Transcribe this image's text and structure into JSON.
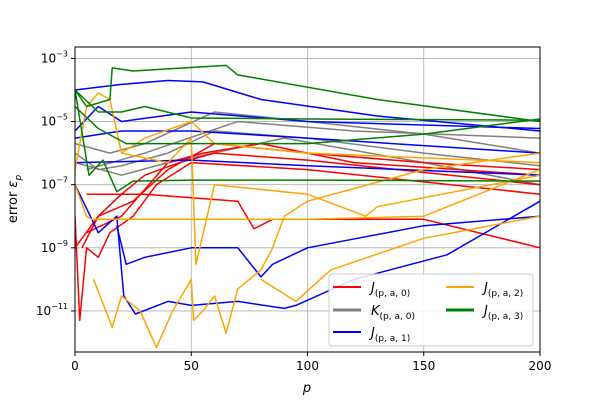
{
  "chart_data": {
    "type": "line",
    "title": "",
    "xlabel": "p",
    "ylabel": "error ε_p",
    "ylabel_prefix": "error ",
    "ylabel_symbol": "ε",
    "ylabel_sub": "p",
    "xlim": [
      0,
      200
    ],
    "ylim": [
      5e-13,
      0.0023
    ],
    "yscale": "log",
    "grid": true,
    "legend_placement": "lower-right",
    "x_ticks": [
      0,
      50,
      100,
      150,
      200
    ],
    "x_tick_labels": [
      "0",
      "50",
      "100",
      "150",
      "200"
    ],
    "y_ticks": [
      0.001,
      1e-05,
      1e-07,
      1e-09,
      1e-11
    ],
    "y_tick_labels": [
      {
        "base": "10",
        "exp": "−3"
      },
      {
        "base": "10",
        "exp": "−5"
      },
      {
        "base": "10",
        "exp": "−7"
      },
      {
        "base": "10",
        "exp": "−9"
      },
      {
        "base": "10",
        "exp": "−11"
      }
    ],
    "legend": [
      {
        "symbol": "J",
        "sub": "(p, a, 0)",
        "color": "#ff0000"
      },
      {
        "symbol": "K",
        "sub": "(p, a, 0)",
        "color": "#808080"
      },
      {
        "symbol": "J",
        "sub": "(p, a, 1)",
        "color": "#0000ff"
      },
      {
        "symbol": "J",
        "sub": "(p, a, 2)",
        "color": "#ffa500"
      },
      {
        "symbol": "J",
        "sub": "(p, a, 3)",
        "color": "#008000"
      }
    ],
    "series": [
      {
        "group": 1,
        "points": [
          [
            0,
            1e-06
          ],
          [
            10,
            3e-07
          ],
          [
            20,
            4e-07
          ],
          [
            40,
            1e-06
          ],
          [
            60,
            5e-06
          ],
          [
            100,
            3e-06
          ],
          [
            150,
            1e-06
          ],
          [
            200,
            4e-07
          ]
        ]
      },
      {
        "group": 1,
        "points": [
          [
            0,
            2e-06
          ],
          [
            15,
            1e-06
          ],
          [
            30,
            2e-06
          ],
          [
            60,
            2e-05
          ],
          [
            100,
            1e-05
          ],
          [
            150,
            4e-06
          ],
          [
            200,
            1e-06
          ]
        ]
      },
      {
        "group": 1,
        "points": [
          [
            0,
            5e-07
          ],
          [
            20,
            2e-07
          ],
          [
            40,
            5e-07
          ],
          [
            90,
            3e-06
          ],
          [
            150,
            5e-07
          ],
          [
            200,
            1e-07
          ]
        ]
      },
      {
        "group": 1,
        "points": [
          [
            5,
            3e-07
          ],
          [
            30,
            1e-06
          ],
          [
            70,
            1e-05
          ],
          [
            120,
            5e-06
          ],
          [
            200,
            3e-06
          ]
        ]
      },
      {
        "group": 0,
        "points": [
          [
            0,
            1e-08
          ],
          [
            2,
            5e-12
          ],
          [
            5,
            1e-09
          ],
          [
            10,
            5e-10
          ],
          [
            15,
            3e-09
          ],
          [
            25,
            1e-08
          ],
          [
            35,
            1e-07
          ],
          [
            50,
            5e-07
          ],
          [
            100,
            3e-07
          ],
          [
            200,
            5e-08
          ]
        ]
      },
      {
        "group": 0,
        "points": [
          [
            0,
            1e-09
          ],
          [
            10,
            1e-08
          ],
          [
            20,
            5e-08
          ],
          [
            30,
            2e-07
          ],
          [
            45,
            5e-07
          ],
          [
            60,
            1e-06
          ],
          [
            100,
            6e-07
          ],
          [
            200,
            1e-07
          ]
        ]
      },
      {
        "group": 0,
        "points": [
          [
            5,
            5e-08
          ],
          [
            30,
            5e-08
          ],
          [
            70,
            3e-08
          ],
          [
            77,
            4e-09
          ],
          [
            85,
            8e-09
          ],
          [
            150,
            8e-09
          ],
          [
            200,
            1e-09
          ]
        ]
      },
      {
        "group": 0,
        "points": [
          [
            3,
            1e-09
          ],
          [
            10,
            1e-08
          ],
          [
            25,
            3e-08
          ],
          [
            40,
            3e-07
          ],
          [
            60,
            2e-06
          ],
          [
            100,
            1e-06
          ],
          [
            150,
            5e-07
          ],
          [
            200,
            3e-07
          ]
        ]
      },
      {
        "group": 0,
        "points": [
          [
            5,
            3e-09
          ],
          [
            20,
            1e-08
          ],
          [
            40,
            5e-07
          ],
          [
            55,
            1e-06
          ],
          [
            80,
            2e-06
          ],
          [
            120,
            5e-07
          ],
          [
            200,
            2e-07
          ]
        ]
      },
      {
        "group": 2,
        "points": [
          [
            0,
            0.0001
          ],
          [
            20,
            0.00015
          ],
          [
            40,
            0.0002
          ],
          [
            55,
            0.00018
          ],
          [
            80,
            5e-05
          ],
          [
            130,
            1.5e-05
          ],
          [
            200,
            5e-06
          ]
        ]
      },
      {
        "group": 2,
        "points": [
          [
            0,
            5e-06
          ],
          [
            10,
            3e-05
          ],
          [
            20,
            1e-05
          ],
          [
            50,
            2e-05
          ],
          [
            100,
            1e-05
          ],
          [
            200,
            6e-06
          ]
        ]
      },
      {
        "group": 2,
        "points": [
          [
            0,
            3e-06
          ],
          [
            20,
            5e-06
          ],
          [
            50,
            5e-06
          ],
          [
            100,
            3e-06
          ],
          [
            200,
            1e-06
          ]
        ]
      },
      {
        "group": 2,
        "points": [
          [
            0,
            5e-07
          ],
          [
            50,
            6e-07
          ],
          [
            100,
            4e-07
          ],
          [
            200,
            2e-07
          ]
        ]
      },
      {
        "group": 2,
        "points": [
          [
            0,
            1e-07
          ],
          [
            10,
            3e-09
          ],
          [
            18,
            1e-08
          ],
          [
            21,
            3e-11
          ],
          [
            26,
            8e-12
          ],
          [
            40,
            2e-11
          ],
          [
            50,
            1.5e-11
          ],
          [
            70,
            2e-11
          ],
          [
            90,
            1.2e-11
          ],
          [
            95,
            1.5e-11
          ],
          [
            120,
            1e-10
          ],
          [
            160,
            6e-10
          ],
          [
            200,
            3e-08
          ]
        ]
      },
      {
        "group": 2,
        "points": [
          [
            18,
            5e-09
          ],
          [
            22,
            3e-10
          ],
          [
            30,
            5e-10
          ],
          [
            50,
            1e-09
          ],
          [
            70,
            1e-09
          ],
          [
            80,
            1.2e-10
          ],
          [
            85,
            3e-10
          ],
          [
            100,
            1e-09
          ],
          [
            150,
            5e-09
          ],
          [
            200,
            1e-08
          ]
        ]
      },
      {
        "group": 3,
        "points": [
          [
            0,
            3e-07
          ],
          [
            5,
            3e-05
          ],
          [
            10,
            8e-05
          ],
          [
            15,
            5e-05
          ],
          [
            20,
            1e-06
          ],
          [
            30,
            3e-06
          ],
          [
            50,
            1e-05
          ],
          [
            60,
            2e-06
          ],
          [
            100,
            1e-06
          ],
          [
            200,
            5e-07
          ]
        ]
      },
      {
        "group": 3,
        "points": [
          [
            0,
            1e-07
          ],
          [
            5,
            1e-08
          ],
          [
            7,
            8e-09
          ],
          [
            50,
            8e-09
          ],
          [
            100,
            8e-09
          ],
          [
            150,
            1e-08
          ],
          [
            200,
            3e-07
          ]
        ]
      },
      {
        "group": 3,
        "points": [
          [
            8,
            1e-10
          ],
          [
            16,
            3e-12
          ],
          [
            20,
            3e-11
          ],
          [
            28,
            1e-11
          ],
          [
            35,
            7e-13
          ],
          [
            42,
            1e-11
          ],
          [
            50,
            1e-10
          ],
          [
            51,
            5e-12
          ],
          [
            55,
            1e-11
          ],
          [
            60,
            3e-11
          ],
          [
            65,
            2e-12
          ],
          [
            70,
            5e-11
          ],
          [
            80,
            2e-10
          ],
          [
            85,
            1e-09
          ],
          [
            90,
            1e-08
          ],
          [
            100,
            3e-08
          ],
          [
            150,
            3e-07
          ],
          [
            200,
            1e-06
          ]
        ]
      },
      {
        "group": 3,
        "points": [
          [
            20,
            1e-06
          ],
          [
            40,
            5e-07
          ],
          [
            50,
            3e-06
          ],
          [
            52,
            3e-10
          ],
          [
            60,
            1e-07
          ],
          [
            100,
            5e-08
          ],
          [
            125,
            1e-08
          ],
          [
            130,
            2e-08
          ],
          [
            200,
            2e-07
          ]
        ]
      },
      {
        "group": 3,
        "points": [
          [
            80,
            1e-10
          ],
          [
            95,
            2e-11
          ],
          [
            110,
            2e-10
          ],
          [
            150,
            2e-09
          ],
          [
            200,
            1e-08
          ]
        ]
      },
      {
        "group": 4,
        "points": [
          [
            0,
            0.0001
          ],
          [
            5,
            3e-05
          ],
          [
            15,
            5e-05
          ],
          [
            16,
            0.0005
          ],
          [
            25,
            0.0004
          ],
          [
            65,
            0.0006
          ],
          [
            70,
            0.0003
          ],
          [
            130,
            5e-05
          ],
          [
            200,
            1e-05
          ]
        ]
      },
      {
        "group": 4,
        "points": [
          [
            0,
            0.0001
          ],
          [
            10,
            2e-05
          ],
          [
            20,
            2e-05
          ],
          [
            30,
            3e-05
          ],
          [
            50,
            1.3e-05
          ],
          [
            100,
            1.2e-05
          ],
          [
            200,
            1.1e-05
          ]
        ]
      },
      {
        "group": 4,
        "points": [
          [
            0,
            3e-05
          ],
          [
            10,
            6e-06
          ],
          [
            22,
            2e-06
          ],
          [
            50,
            2e-06
          ],
          [
            100,
            2e-06
          ],
          [
            150,
            4e-06
          ],
          [
            200,
            1.2e-05
          ]
        ]
      },
      {
        "group": 4,
        "points": [
          [
            0,
            0.0001
          ],
          [
            6,
            2e-07
          ],
          [
            12,
            6e-07
          ],
          [
            18,
            6e-08
          ],
          [
            25,
            1.3e-07
          ],
          [
            50,
            1.4e-07
          ],
          [
            100,
            1.4e-07
          ],
          [
            200,
            1.3e-07
          ]
        ]
      }
    ]
  }
}
